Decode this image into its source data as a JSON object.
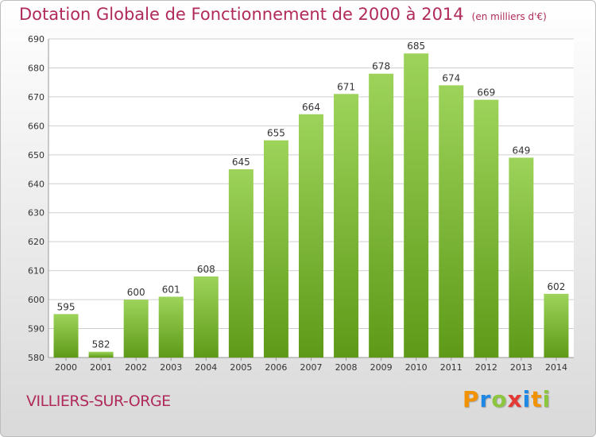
{
  "title": "Dotation Globale de Fonctionnement de 2000 à 2014",
  "subtitle": "(en milliers d'€)",
  "commune": "VILLIERS-SUR-ORGE",
  "logo": {
    "text": "Proxiti",
    "colors": [
      "#f39200",
      "#1e88e5",
      "#8cc63f",
      "#e53935",
      "#1e88e5",
      "#f39200",
      "#8cc63f"
    ]
  },
  "colors": {
    "title": "#b02a5b",
    "bar_light": "#9dd35a",
    "bar_dark": "#5e9a18",
    "grid": "#cfcfcf"
  },
  "chart_data": {
    "type": "bar",
    "categories": [
      "2000",
      "2001",
      "2002",
      "2003",
      "2004",
      "2005",
      "2006",
      "2007",
      "2008",
      "2009",
      "2010",
      "2011",
      "2012",
      "2013",
      "2014"
    ],
    "values": [
      595,
      582,
      600,
      601,
      608,
      645,
      655,
      664,
      671,
      678,
      685,
      674,
      669,
      649,
      602
    ],
    "ylim": [
      580,
      690
    ],
    "yticks": [
      580,
      590,
      600,
      610,
      620,
      630,
      640,
      650,
      660,
      670,
      680,
      690
    ],
    "grid": true,
    "legend": "none"
  }
}
